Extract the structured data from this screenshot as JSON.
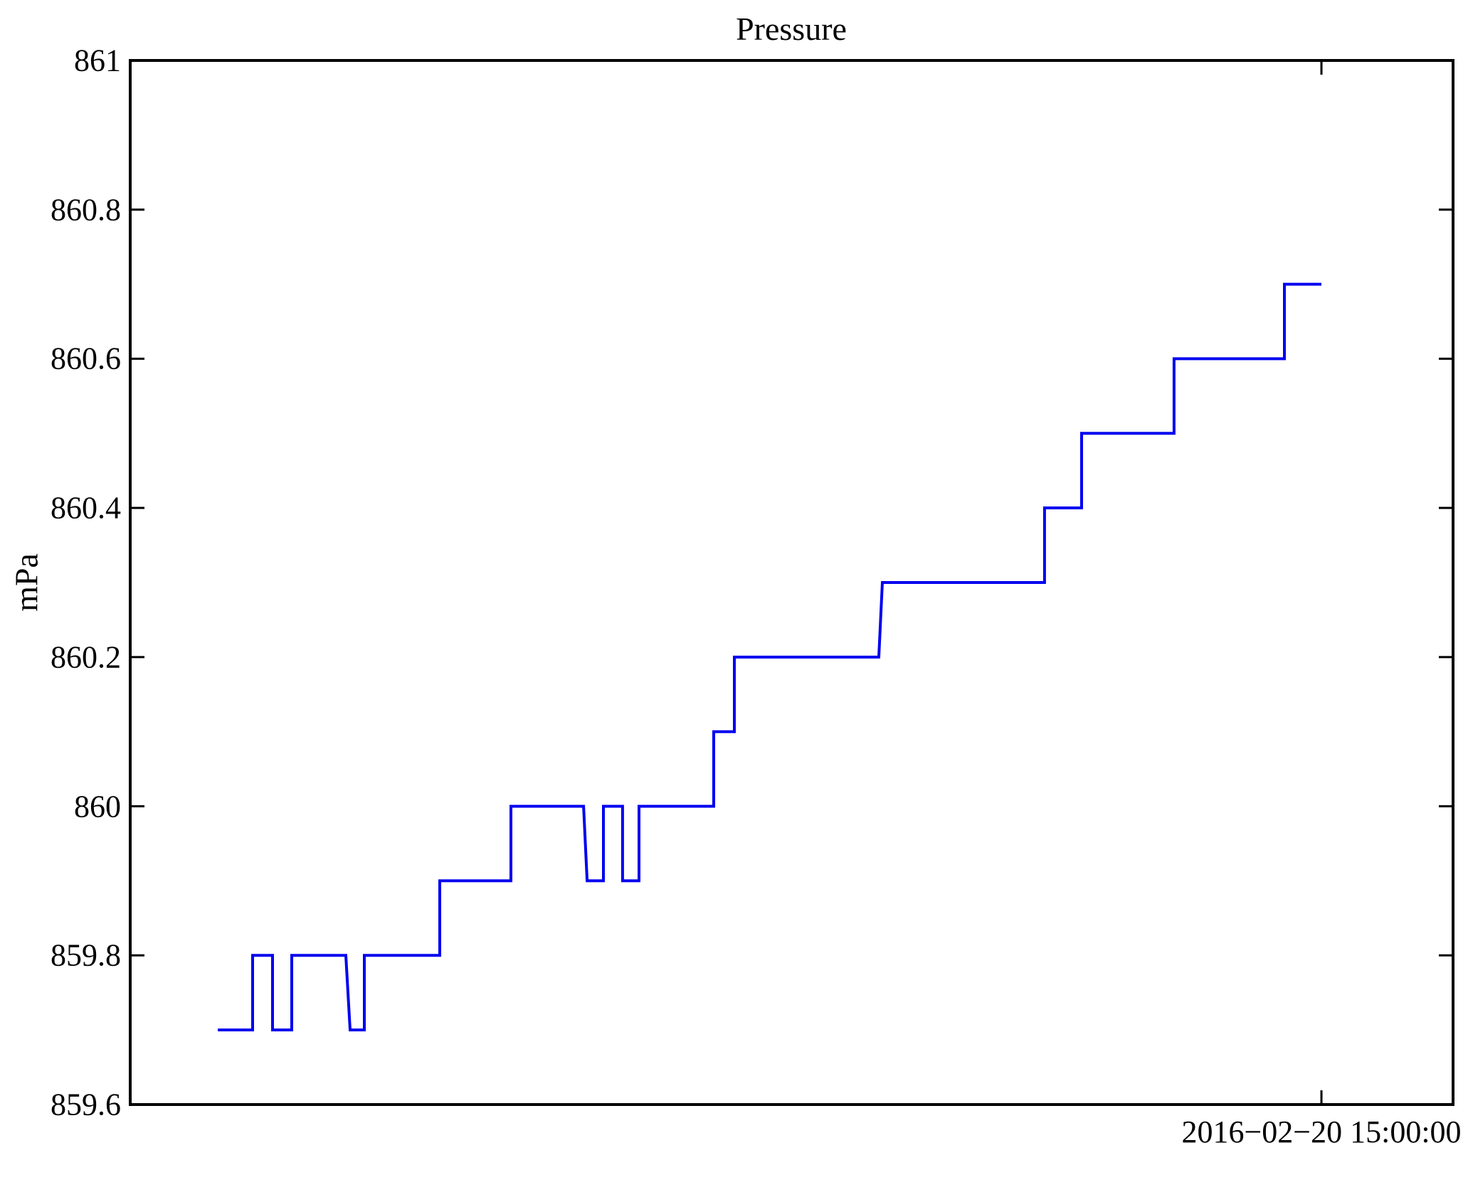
{
  "figure": {
    "background": "#ffffff"
  },
  "chart_data": {
    "type": "line",
    "subtype": "step",
    "title": "Pressure",
    "ylabel": "mPa",
    "xlabel": "",
    "ylim": [
      859.6,
      861
    ],
    "xlim": [
      0,
      1
    ],
    "grid": false,
    "legend_position": "none",
    "line_color": "#0000f0",
    "axis_color": "#000000",
    "yticks": [
      861,
      860.8,
      860.6,
      860.4,
      860.2,
      860,
      859.8,
      859.6
    ],
    "ytick_labels": [
      "861",
      "860.8",
      "860.6",
      "860.4",
      "860.2",
      "860",
      "859.8",
      "859.6"
    ],
    "x_tick": {
      "label": "2016−02−20 15:00:00",
      "position": 0.9005
    },
    "series": [
      {
        "name": "Pressure",
        "points": [
          [
            0.0662,
            859.7
          ],
          [
            0.0925,
            859.7
          ],
          [
            0.0925,
            859.8
          ],
          [
            0.1076,
            859.8
          ],
          [
            0.1076,
            859.7
          ],
          [
            0.1221,
            859.7
          ],
          [
            0.1221,
            859.8
          ],
          [
            0.163,
            859.8
          ],
          [
            0.1662,
            859.7
          ],
          [
            0.177,
            859.7
          ],
          [
            0.177,
            859.8
          ],
          [
            0.234,
            859.8
          ],
          [
            0.234,
            859.9
          ],
          [
            0.2878,
            859.9
          ],
          [
            0.2878,
            860.0
          ],
          [
            0.3427,
            860.0
          ],
          [
            0.3454,
            859.9
          ],
          [
            0.3577,
            859.9
          ],
          [
            0.3577,
            860.0
          ],
          [
            0.3722,
            860.0
          ],
          [
            0.3722,
            859.9
          ],
          [
            0.3846,
            859.9
          ],
          [
            0.3846,
            860.0
          ],
          [
            0.4411,
            860.0
          ],
          [
            0.4411,
            860.1
          ],
          [
            0.4567,
            860.1
          ],
          [
            0.4567,
            860.2
          ],
          [
            0.5659,
            860.2
          ],
          [
            0.5686,
            860.3
          ],
          [
            0.6912,
            860.3
          ],
          [
            0.6912,
            860.4
          ],
          [
            0.7192,
            860.4
          ],
          [
            0.7192,
            860.5
          ],
          [
            0.7891,
            860.5
          ],
          [
            0.7891,
            860.6
          ],
          [
            0.8725,
            860.6
          ],
          [
            0.8725,
            860.7
          ],
          [
            0.9005,
            860.7
          ]
        ]
      }
    ]
  }
}
